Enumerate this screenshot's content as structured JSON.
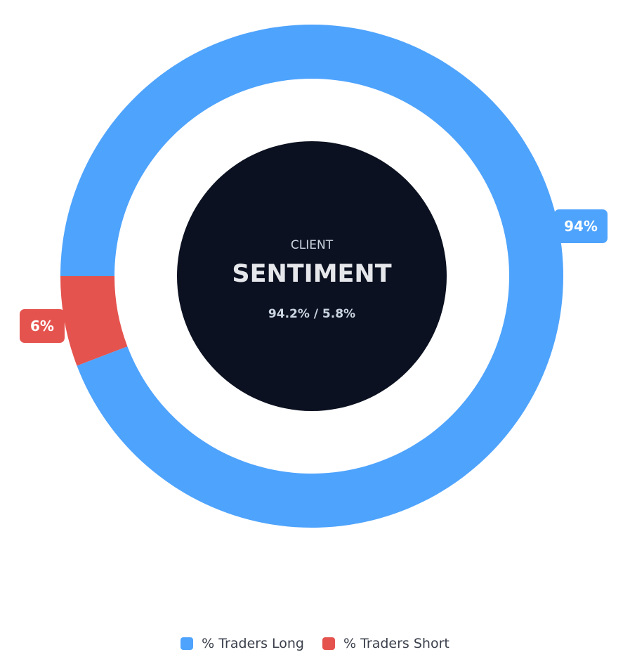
{
  "chart_data": {
    "type": "pie",
    "variant": "donut",
    "title": "",
    "series": [
      {
        "name": "% Traders Long",
        "value": 94.2,
        "label": "94%",
        "color": "#4ea3fd"
      },
      {
        "name": "% Traders Short",
        "value": 5.8,
        "label": "6%",
        "color": "#e5534e"
      }
    ],
    "center": {
      "eyebrow": "CLIENT",
      "title": "SENTIMENT",
      "ratio": "94.2% / 5.8%"
    },
    "legend": {
      "position": "bottom",
      "items": [
        "% Traders Long",
        "% Traders Short"
      ]
    }
  },
  "colors": {
    "center_fill": "#0b1120",
    "center_eyebrow": "#cbd5e1",
    "center_title": "#e5e7eb",
    "center_ratio": "#cbd5e1",
    "label_text": "#ffffff"
  }
}
